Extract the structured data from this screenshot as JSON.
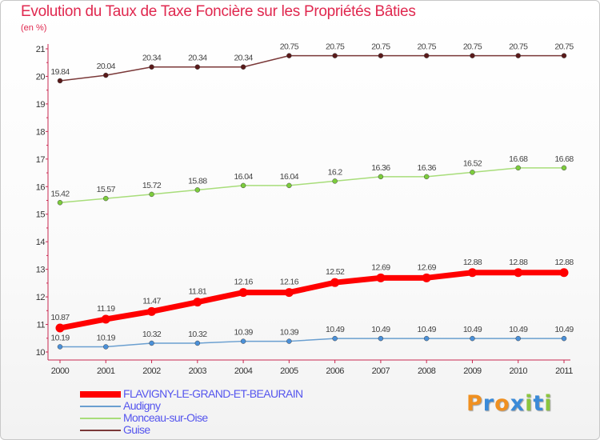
{
  "title": "Evolution du Taux de Taxe Foncière sur les Propriétés Bâties",
  "unit_label": "(en %)",
  "chart_data": {
    "type": "line",
    "categories": [
      "2000",
      "2001",
      "2002",
      "2003",
      "2004",
      "2005",
      "2006",
      "2007",
      "2008",
      "2009",
      "2010",
      "2011"
    ],
    "ylim": [
      10,
      21
    ],
    "yticks": [
      "10",
      "11",
      "12",
      "13",
      "14",
      "15",
      "16",
      "17",
      "18",
      "19",
      "20",
      "21"
    ],
    "grid": false,
    "series": [
      {
        "name": "FLAVIGNY-LE-GRAND-ET-BEAURAIN",
        "color": "#ff0000",
        "marker": "#ff0000",
        "values": [
          10.87,
          11.19,
          11.47,
          11.81,
          12.16,
          12.16,
          12.52,
          12.69,
          12.69,
          12.88,
          12.88,
          12.88
        ],
        "labels": [
          "10.87",
          "11.19",
          "11.47",
          "11.81",
          "12.16",
          "12.16",
          "12.52",
          "12.69",
          "12.69",
          "12.88",
          "12.88",
          "12.88"
        ]
      },
      {
        "name": "Audigny",
        "color": "#6a9fd0",
        "marker": "#4a90d9",
        "values": [
          10.19,
          10.19,
          10.32,
          10.32,
          10.39,
          10.39,
          10.49,
          10.49,
          10.49,
          10.49,
          10.49,
          10.49
        ],
        "labels": [
          "10.19",
          "10.19",
          "10.32",
          "10.32",
          "10.39",
          "10.39",
          "10.49",
          "10.49",
          "10.49",
          "10.49",
          "10.49",
          "10.49"
        ]
      },
      {
        "name": "Monceau-sur-Oise",
        "color": "#a8dd7a",
        "marker": "#7ccc3c",
        "values": [
          15.42,
          15.57,
          15.72,
          15.88,
          16.04,
          16.04,
          16.2,
          16.36,
          16.36,
          16.52,
          16.68,
          16.68
        ],
        "labels": [
          "15.42",
          "15.57",
          "15.72",
          "15.88",
          "16.04",
          "16.04",
          "16.2",
          "16.36",
          "16.36",
          "16.52",
          "16.68",
          "16.68"
        ]
      },
      {
        "name": "Guise",
        "color": "#7a3838",
        "marker": "#5a1a1a",
        "values": [
          19.84,
          20.04,
          20.34,
          20.34,
          20.34,
          20.75,
          20.75,
          20.75,
          20.75,
          20.75,
          20.75,
          20.75
        ],
        "labels": [
          "19.84",
          "20.04",
          "20.34",
          "20.34",
          "20.34",
          "20.75",
          "20.75",
          "20.75",
          "20.75",
          "20.75",
          "20.75",
          "20.75"
        ]
      }
    ]
  },
  "logo": {
    "text": "Proxiti",
    "letters": [
      "P",
      "r",
      "o",
      "x",
      "i",
      "t",
      "i"
    ],
    "colors": [
      "#f09020",
      "#3a8ad8",
      "#f09020",
      "#3a8ad8",
      "#8bc53f",
      "#3a8ad8",
      "#8bc53f"
    ]
  }
}
